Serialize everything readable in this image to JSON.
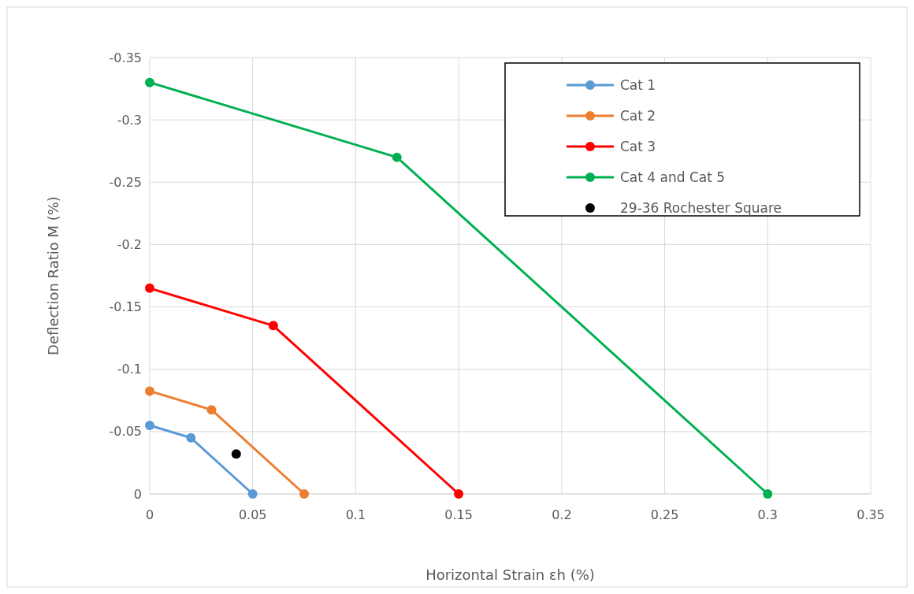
{
  "chart_data": {
    "type": "line",
    "xlabel": "Horizontal Strain εh (%)",
    "ylabel": "Deflection Ratio M (%)",
    "xlim": [
      0,
      0.35
    ],
    "xticks": [
      0,
      0.05,
      0.1,
      0.15,
      0.2,
      0.25,
      0.3,
      0.35
    ],
    "ylim": [
      0,
      -0.35
    ],
    "yticks": [
      0,
      -0.05,
      -0.1,
      -0.15,
      -0.2,
      -0.25,
      -0.3,
      -0.35
    ],
    "grid": true,
    "legend": "top right",
    "marker": "circle",
    "line_style": "solid",
    "series": [
      {
        "name": "Cat 1",
        "color": "#5b9bd5",
        "x": [
          0,
          0.02,
          0.05
        ],
        "values": [
          -0.055,
          -0.045,
          0
        ]
      },
      {
        "name": "Cat 2",
        "color": "#ed7d31",
        "x": [
          0,
          0.03,
          0.075
        ],
        "values": [
          -0.0825,
          -0.0675,
          0
        ]
      },
      {
        "name": "Cat 3",
        "color": "#ff0000",
        "x": [
          0,
          0.06,
          0.15
        ],
        "values": [
          -0.165,
          -0.135,
          0
        ]
      },
      {
        "name": "Cat 4 and Cat 5",
        "color": "#00b050",
        "x": [
          0,
          0.12,
          0.3
        ],
        "values": [
          -0.33,
          -0.27,
          0
        ]
      },
      {
        "name": "29-36 Rochester Square",
        "type": "scatter",
        "color": "#000000",
        "x": [
          0.042
        ],
        "values": [
          -0.032
        ]
      }
    ]
  }
}
